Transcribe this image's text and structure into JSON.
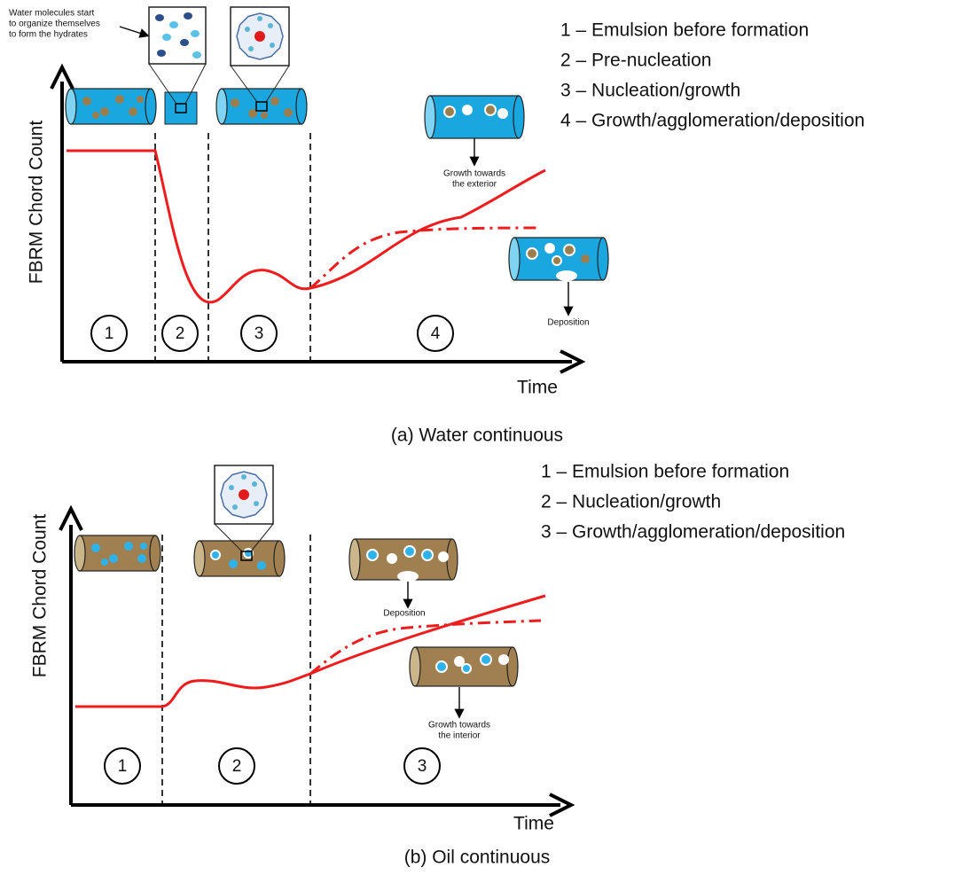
{
  "panel_a": {
    "annotation": [
      "Water molecules start",
      "to organize themselves",
      "to form the hydrates"
    ],
    "y_label": "FBRM Chord Count",
    "x_label": "Time",
    "legend": [
      "1 – Emulsion before formation",
      "2 – Pre-nucleation",
      "3 – Nucleation/growth",
      "4 – Growth/agglomeration/deposition"
    ],
    "stages": [
      "1",
      "2",
      "3",
      "4"
    ],
    "growth_note": [
      "Growth towards",
      "the exterior"
    ],
    "deposition_note": "Deposition",
    "caption": "(a) Water continuous"
  },
  "panel_b": {
    "y_label": "FBRM Chord Count",
    "x_label": "Time",
    "legend": [
      "1 – Emulsion before formation",
      "2 – Nucleation/growth",
      "3 – Growth/agglomeration/deposition"
    ],
    "stages": [
      "1",
      "2",
      "3"
    ],
    "deposition_note": "Deposition",
    "growth_note": [
      "Growth towards",
      "the interior"
    ],
    "caption": "(b) Oil continuous"
  }
}
